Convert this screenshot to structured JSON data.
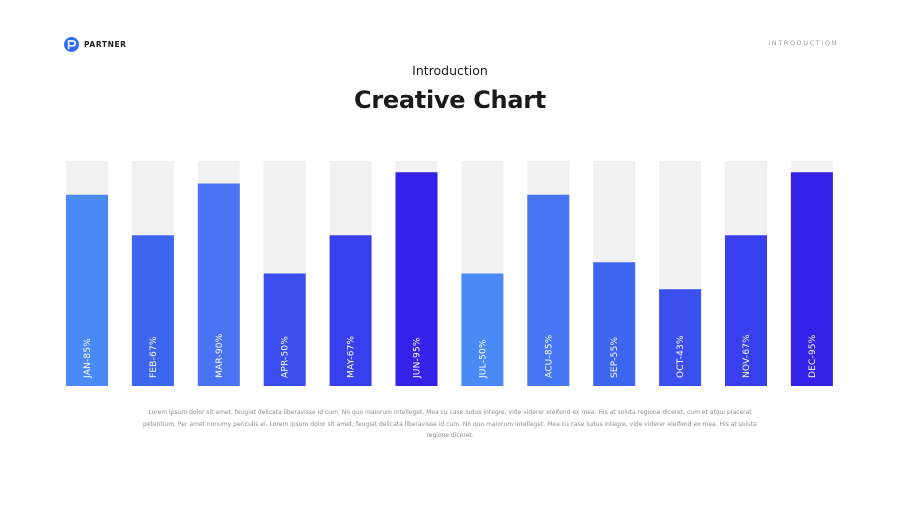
{
  "brand": {
    "name": "PARTNER",
    "icon": "partner-logo-icon",
    "color": "#2f6df6"
  },
  "section_label": "INTRODUCTION",
  "subtitle": "Introduction",
  "title": "Creative Chart",
  "body_text": "Lorem ipsum dolor sit amet, feugiat delicata liberavisse id cum. No quo maiorum intelleget. Mea cu case ludus integre, vide viderer eleifend ex mea. His at soluta regione diceret, cum et atqui placerat petentium. Per amet nonumy periculis ei. Lorem ipsum dolor sit amet, feugiat delicata liberavisse id cum. No quo maiorum intelleget. Mea cu case ludus integre, vide viderer eleifend ex mea. His at soluta regione diceret.",
  "colors": {
    "track": "#f1f1f1",
    "bar_light": "#4a8af7",
    "bar_mid": "#3d66f0",
    "bar_dark": "#3422e8"
  },
  "chart_data": {
    "type": "bar",
    "orientation": "vertical",
    "ylim": [
      0,
      100
    ],
    "grid": false,
    "legend": "none",
    "categories": [
      "JAN",
      "FEB",
      "MAR",
      "APR",
      "MAY",
      "JUN",
      "JUL",
      "ACU",
      "SEP",
      "OCT",
      "NOV",
      "DEC"
    ],
    "values": [
      85,
      67,
      90,
      50,
      67,
      95,
      50,
      85,
      55,
      43,
      67,
      95
    ],
    "labels": [
      "JAN-85%",
      "FEB-67%",
      "MAR-90%",
      "APR-50%",
      "MAY-67%",
      "JUN-95%",
      "JUL-50%",
      "ACU-85%",
      "SEP-55%",
      "OCT-43%",
      "NOV-67%",
      "DEC-95%"
    ],
    "bar_colors": [
      "#4a8af7",
      "#3d66f0",
      "#4a72f4",
      "#3b4ff0",
      "#3740ec",
      "#3422e8",
      "#4a8af7",
      "#4577f5",
      "#3d66f0",
      "#3b4ff0",
      "#3740ec",
      "#3422e8"
    ]
  }
}
